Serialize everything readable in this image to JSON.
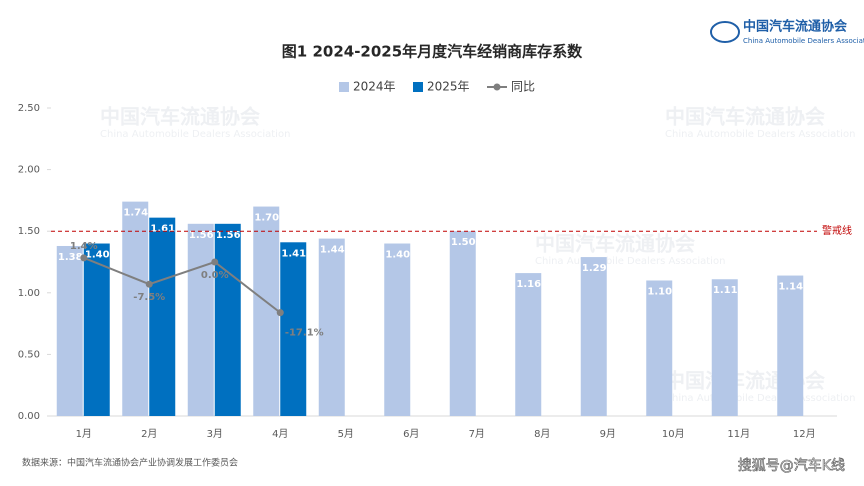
{
  "chart_data": {
    "type": "bar",
    "title": "图1  2024-2025年月度汽车经销商库存系数",
    "categories": [
      "1月",
      "2月",
      "3月",
      "4月",
      "5月",
      "6月",
      "7月",
      "8月",
      "9月",
      "10月",
      "11月",
      "12月"
    ],
    "series": [
      {
        "name": "2024年",
        "color": "#b4c7e7",
        "values": [
          1.38,
          1.74,
          1.56,
          1.7,
          1.44,
          1.4,
          1.5,
          1.16,
          1.29,
          1.1,
          1.11,
          1.14
        ],
        "value_labels": [
          "1.38",
          "1.74",
          "1.56",
          "1.70",
          "1.44",
          "1.40",
          "1.50",
          "1.16",
          "1.29",
          "1.10",
          "1.11",
          "1.14"
        ]
      },
      {
        "name": "2025年",
        "color": "#0070c0",
        "values": [
          1.4,
          1.61,
          1.56,
          1.41,
          null,
          null,
          null,
          null,
          null,
          null,
          null,
          null
        ],
        "value_labels": [
          "1.40",
          "1.61",
          "1.56",
          "1.41",
          null,
          null,
          null,
          null,
          null,
          null,
          null,
          null
        ]
      },
      {
        "name": "同比",
        "type": "line",
        "axis": "y2",
        "color": "#7f7f7f",
        "values": [
          1.4,
          -7.5,
          0.0,
          -17.1,
          null,
          null,
          null,
          null,
          null,
          null,
          null,
          null
        ],
        "value_labels": [
          "1.4%",
          "-7.5%",
          "0.0%",
          "-17.1%",
          null,
          null,
          null,
          null,
          null,
          null,
          null,
          null
        ]
      }
    ],
    "ylim": [
      0,
      2.5
    ],
    "yticks": [
      {
        "value": 0,
        "label": "0.00"
      },
      {
        "value": 0.5,
        "label": "0.50"
      },
      {
        "value": 1,
        "label": "1.00"
      },
      {
        "value": 1.5,
        "label": "1.50"
      },
      {
        "value": 2,
        "label": "2.00"
      },
      {
        "value": 2.5,
        "label": "2.50"
      }
    ],
    "y2lim": [
      -52,
      52
    ],
    "reference_line": {
      "value": 1.5,
      "label": "警戒线",
      "color": "#c00000"
    },
    "legend": "top",
    "source": "数据来源：中国汽车流通协会产业协调发展工作委员会",
    "logo": {
      "cn": "中国汽车流通协会",
      "en": "China Automobile Dealers Association"
    },
    "credit": "搜狐号@汽车K线"
  }
}
